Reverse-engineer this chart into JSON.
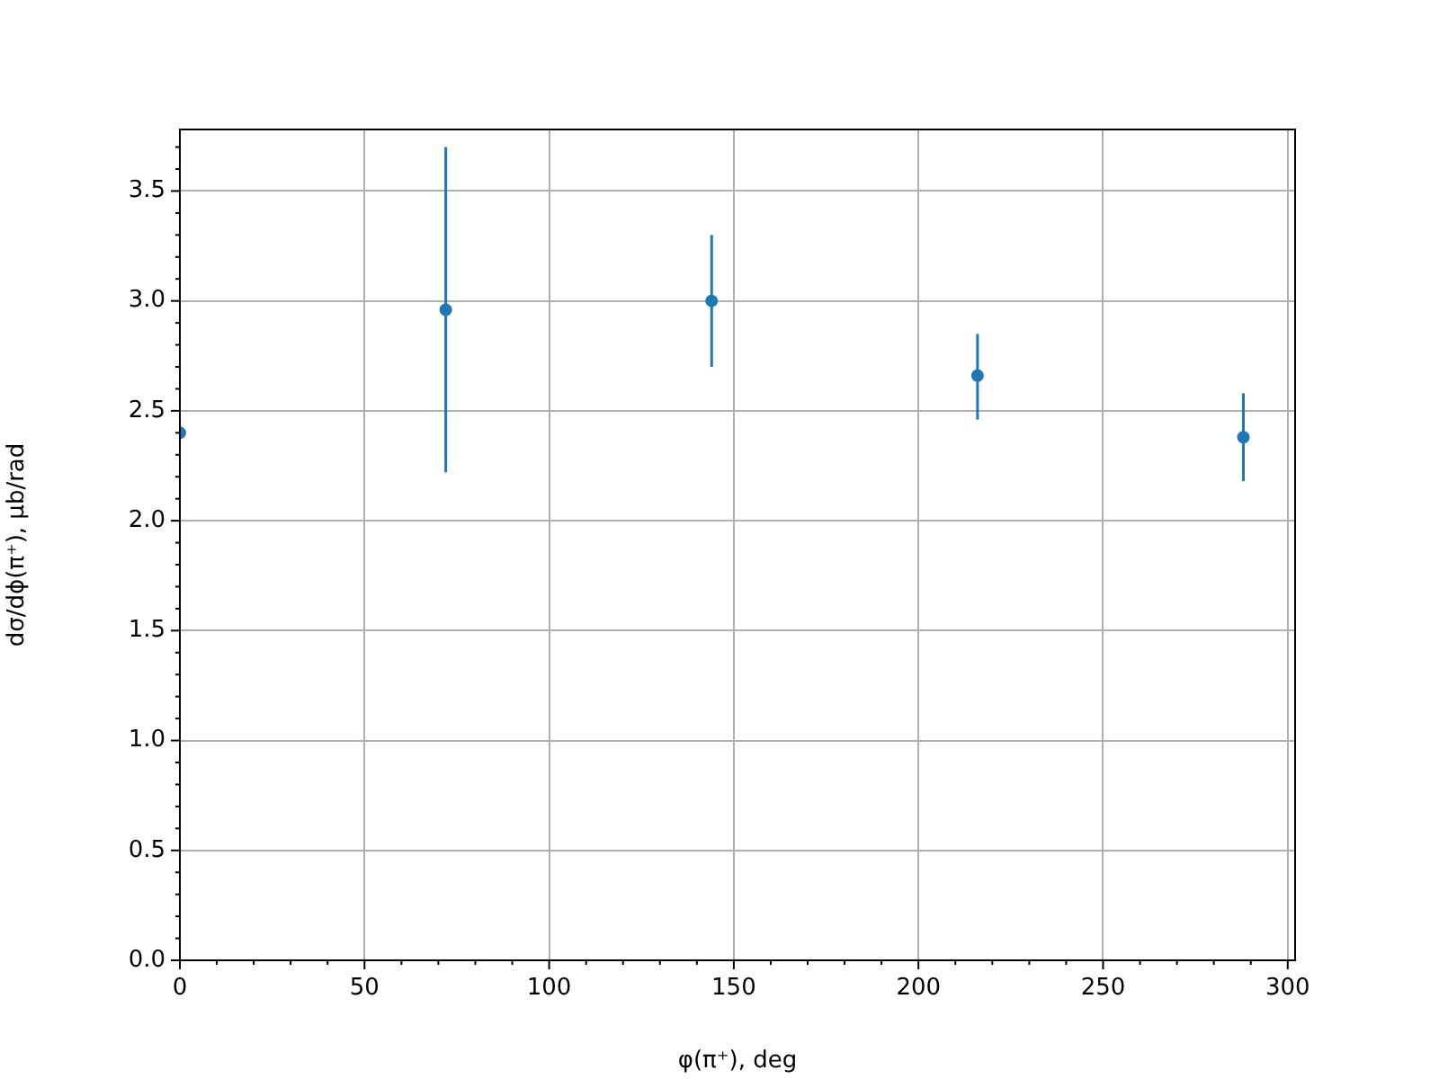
{
  "chart_data": {
    "type": "scatter",
    "xlabel": "φ(π⁺), deg",
    "ylabel": "dσ/dϕ(π⁺), μb/rad",
    "x": [
      0,
      72,
      144,
      216,
      288
    ],
    "series": [
      {
        "color": "#1f77b4",
        "values": [
          2.4,
          2.96,
          3.0,
          2.66,
          2.38
        ],
        "errors": [
          null,
          [
            2.22,
            3.7
          ],
          [
            2.7,
            3.3
          ],
          [
            2.46,
            2.85
          ],
          [
            2.18,
            2.58
          ]
        ]
      }
    ],
    "xlim": [
      0,
      302
    ],
    "xticks": [
      0,
      {
        "value": 10,
        "label": null
      },
      {
        "value": 20,
        "label": null
      },
      {
        "value": 30,
        "label": null
      },
      {
        "value": 40,
        "label": null
      },
      50,
      {
        "value": 60,
        "label": null
      },
      {
        "value": 70,
        "label": null
      },
      {
        "value": 80,
        "label": null
      },
      {
        "value": 90,
        "label": null
      },
      100,
      {
        "value": 110,
        "label": null
      },
      {
        "value": 120,
        "label": null
      },
      {
        "value": 130,
        "label": null
      },
      {
        "value": 140,
        "label": null
      },
      150,
      {
        "value": 160,
        "label": null
      },
      {
        "value": 170,
        "label": null
      },
      {
        "value": 180,
        "label": null
      },
      {
        "value": 190,
        "label": null
      },
      200,
      {
        "value": 210,
        "label": null
      },
      {
        "value": 220,
        "label": null
      },
      {
        "value": 230,
        "label": null
      },
      {
        "value": 240,
        "label": null
      },
      250,
      {
        "value": 260,
        "label": null
      },
      {
        "value": 270,
        "label": null
      },
      {
        "value": 280,
        "label": null
      },
      {
        "value": 290,
        "label": null
      },
      300
    ],
    "ylim": [
      0,
      3.78
    ],
    "yticks": [
      {
        "value": 0,
        "label": "0.0"
      },
      {
        "value": 0.1,
        "label": null
      },
      {
        "value": 0.2,
        "label": null
      },
      {
        "value": 0.3,
        "label": null
      },
      {
        "value": 0.4,
        "label": null
      },
      {
        "value": 0.5,
        "label": "0.5"
      },
      {
        "value": 0.6,
        "label": null
      },
      {
        "value": 0.7,
        "label": null
      },
      {
        "value": 0.8,
        "label": null
      },
      {
        "value": 0.9,
        "label": null
      },
      {
        "value": 1,
        "label": "1.0"
      },
      {
        "value": 1.1,
        "label": null
      },
      {
        "value": 1.2,
        "label": null
      },
      {
        "value": 1.3,
        "label": null
      },
      {
        "value": 1.4,
        "label": null
      },
      {
        "value": 1.5,
        "label": "1.5"
      },
      {
        "value": 1.6,
        "label": null
      },
      {
        "value": 1.7,
        "label": null
      },
      {
        "value": 1.8,
        "label": null
      },
      {
        "value": 1.9,
        "label": null
      },
      {
        "value": 2,
        "label": "2.0"
      },
      {
        "value": 2.1,
        "label": null
      },
      {
        "value": 2.2,
        "label": null
      },
      {
        "value": 2.3,
        "label": null
      },
      {
        "value": 2.4,
        "label": null
      },
      {
        "value": 2.5,
        "label": "2.5"
      },
      {
        "value": 2.6,
        "label": null
      },
      {
        "value": 2.7,
        "label": null
      },
      {
        "value": 2.8,
        "label": null
      },
      {
        "value": 2.9,
        "label": null
      },
      {
        "value": 3,
        "label": "3.0"
      },
      {
        "value": 3.1,
        "label": null
      },
      {
        "value": 3.2,
        "label": null
      },
      {
        "value": 3.3,
        "label": null
      },
      {
        "value": 3.4,
        "label": null
      },
      {
        "value": 3.5,
        "label": "3.5"
      },
      {
        "value": 3.6,
        "label": null
      },
      {
        "value": 3.7,
        "label": null
      }
    ],
    "grid": true,
    "marker": "circle"
  }
}
